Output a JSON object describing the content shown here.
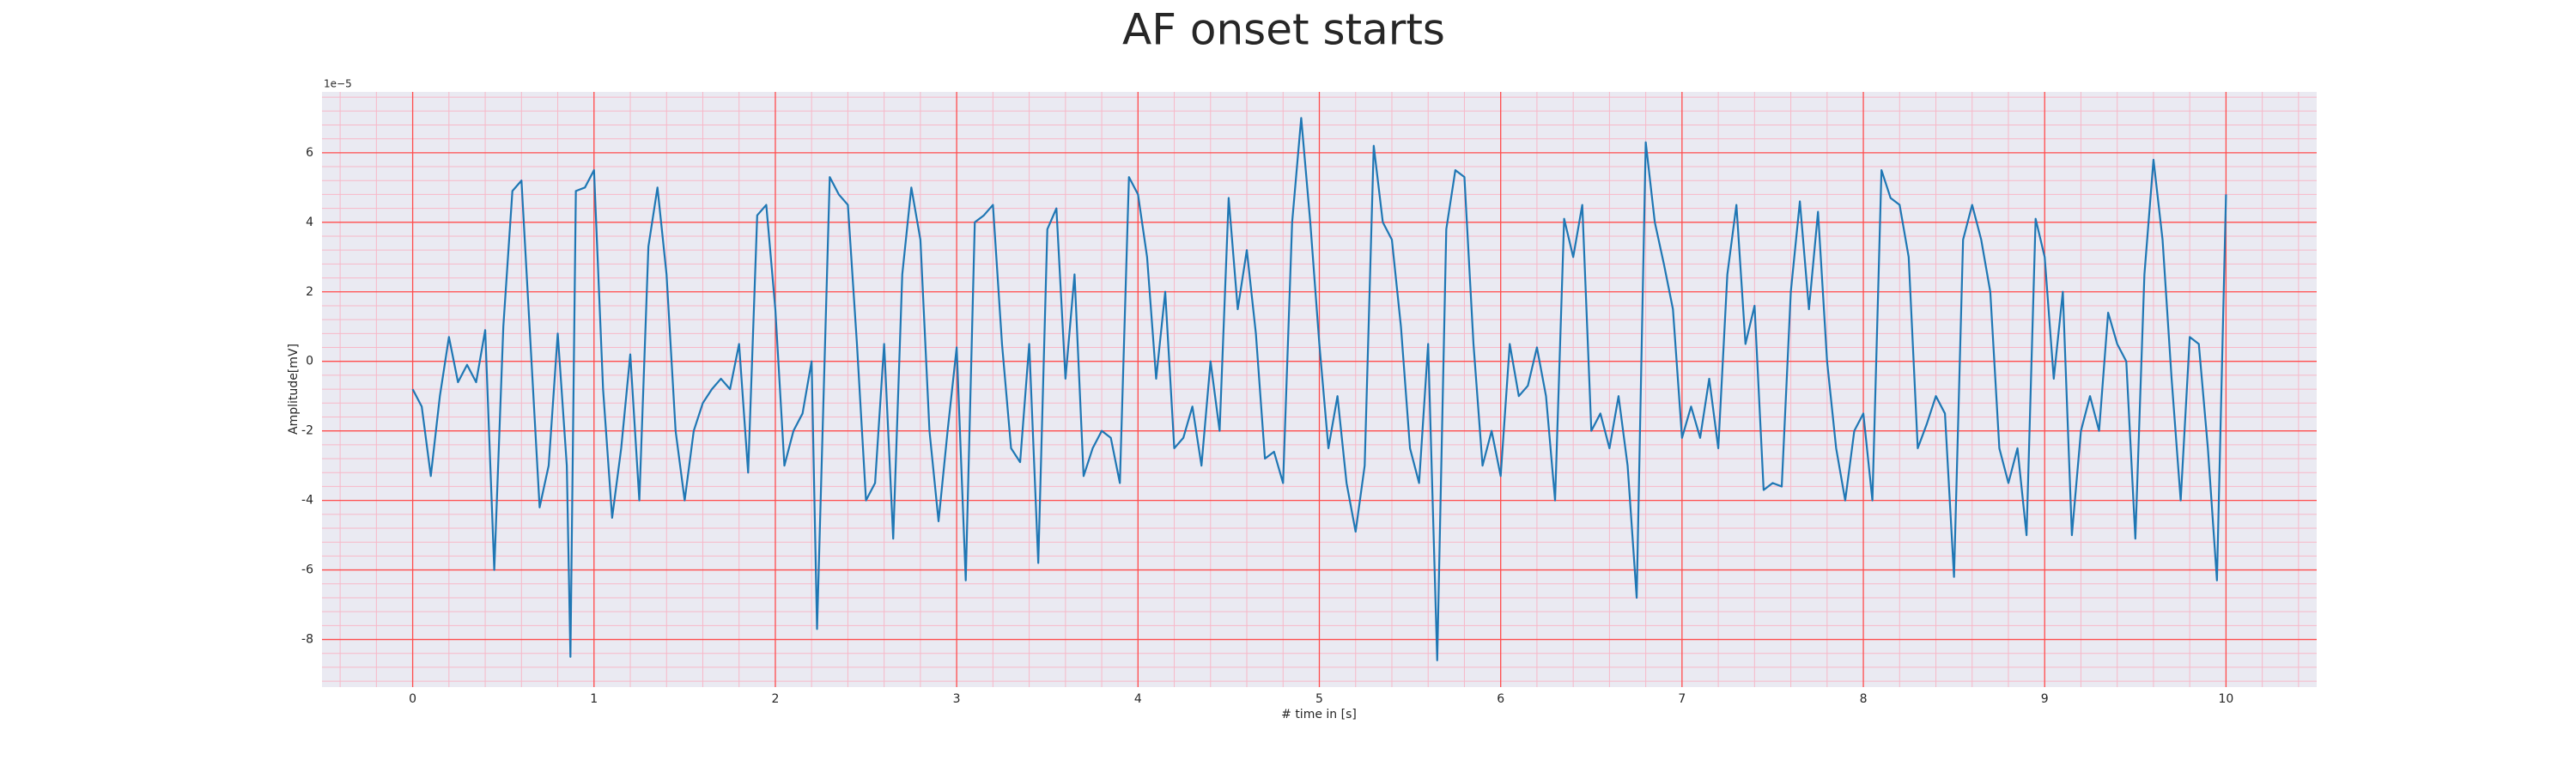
{
  "chart_data": {
    "type": "line",
    "title": "AF onset starts",
    "xlabel": "# time in [s]",
    "ylabel": "Amplitude[mV]",
    "y_offset_label": "1e−5",
    "color": "#1f77b4",
    "grid": true,
    "major_grid_color": "#ff4d4d",
    "minor_grid_color": "#f7b8c8",
    "background": "#eaeaf2",
    "xlim": [
      -0.5,
      10.5
    ],
    "xticks": [
      0,
      1,
      2,
      3,
      4,
      5,
      6,
      7,
      8,
      9,
      10
    ],
    "ylim": [
      -9.37,
      7.75
    ],
    "yticks": [
      -8,
      -6,
      -4,
      -2,
      0,
      2,
      4,
      6
    ],
    "x": [
      0,
      0.05,
      0.1,
      0.15,
      0.2,
      0.25,
      0.3,
      0.35,
      0.4,
      0.45,
      0.5,
      0.55,
      0.6,
      0.65,
      0.7,
      0.75,
      0.8,
      0.85,
      0.87,
      0.9,
      0.95,
      1,
      1.05,
      1.1,
      1.15,
      1.2,
      1.25,
      1.3,
      1.35,
      1.4,
      1.45,
      1.5,
      1.55,
      1.6,
      1.65,
      1.7,
      1.75,
      1.8,
      1.85,
      1.9,
      1.95,
      2,
      2.05,
      2.1,
      2.15,
      2.2,
      2.23,
      2.3,
      2.35,
      2.4,
      2.45,
      2.5,
      2.55,
      2.6,
      2.65,
      2.7,
      2.75,
      2.8,
      2.85,
      2.9,
      2.95,
      3,
      3.05,
      3.1,
      3.15,
      3.2,
      3.25,
      3.3,
      3.35,
      3.4,
      3.45,
      3.5,
      3.55,
      3.6,
      3.65,
      3.7,
      3.75,
      3.8,
      3.85,
      3.9,
      3.95,
      4,
      4.05,
      4.1,
      4.15,
      4.2,
      4.25,
      4.3,
      4.35,
      4.4,
      4.45,
      4.5,
      4.55,
      4.6,
      4.65,
      4.7,
      4.75,
      4.8,
      4.85,
      4.9,
      4.95,
      5,
      5.05,
      5.1,
      5.15,
      5.2,
      5.25,
      5.3,
      5.35,
      5.4,
      5.45,
      5.5,
      5.55,
      5.6,
      5.65,
      5.7,
      5.75,
      5.8,
      5.85,
      5.9,
      5.95,
      6,
      6.05,
      6.1,
      6.15,
      6.2,
      6.25,
      6.3,
      6.35,
      6.4,
      6.45,
      6.5,
      6.55,
      6.6,
      6.65,
      6.7,
      6.75,
      6.8,
      6.85,
      6.9,
      6.95,
      7,
      7.05,
      7.1,
      7.15,
      7.2,
      7.25,
      7.3,
      7.35,
      7.4,
      7.45,
      7.5,
      7.55,
      7.6,
      7.65,
      7.7,
      7.75,
      7.8,
      7.85,
      7.9,
      7.95,
      8,
      8.05,
      8.1,
      8.15,
      8.2,
      8.25,
      8.3,
      8.35,
      8.4,
      8.45,
      8.5,
      8.55,
      8.6,
      8.65,
      8.7,
      8.75,
      8.8,
      8.85,
      8.9,
      8.95,
      9,
      9.05,
      9.1,
      9.15,
      9.2,
      9.25,
      9.3,
      9.35,
      9.4,
      9.45,
      9.5,
      9.55,
      9.6,
      9.65,
      9.7,
      9.75,
      9.8,
      9.85,
      9.9,
      9.95,
      10
    ],
    "values": [
      -0.8,
      -1.3,
      -3.3,
      -1.0,
      0.7,
      -0.6,
      -0.1,
      -0.6,
      0.9,
      -6.0,
      1.0,
      4.9,
      5.2,
      0.5,
      -4.2,
      -3.0,
      0.8,
      -3.0,
      -8.5,
      4.9,
      5.0,
      5.5,
      -0.8,
      -4.5,
      -2.5,
      0.2,
      -4.0,
      3.3,
      5.0,
      2.5,
      -2.0,
      -4.0,
      -2.0,
      -1.2,
      -0.8,
      -0.5,
      -0.8,
      0.5,
      -3.2,
      4.2,
      4.5,
      1.5,
      -3.0,
      -2.0,
      -1.5,
      0.0,
      -7.7,
      5.3,
      4.8,
      4.5,
      0.5,
      -4.0,
      -3.5,
      0.5,
      -5.1,
      2.5,
      5.0,
      3.5,
      -2.0,
      -4.6,
      -2.0,
      0.4,
      -6.3,
      4.0,
      4.2,
      4.5,
      0.5,
      -2.5,
      -2.9,
      0.5,
      -5.8,
      3.8,
      4.4,
      -0.5,
      2.5,
      -3.3,
      -2.5,
      -2.0,
      -2.2,
      -3.5,
      5.3,
      4.8,
      3.0,
      -0.5,
      2.0,
      -2.5,
      -2.2,
      -1.3,
      -3.0,
      0.0,
      -2.0,
      4.7,
      1.5,
      3.2,
      0.8,
      -2.8,
      -2.6,
      -3.5,
      4.0,
      7.0,
      4.0,
      0.5,
      -2.5,
      -1.0,
      -3.5,
      -4.9,
      -3.0,
      6.2,
      4.0,
      3.5,
      1.0,
      -2.5,
      -3.5,
      0.5,
      -8.6,
      3.8,
      5.5,
      5.3,
      0.5,
      -3.0,
      -2.0,
      -3.3,
      0.5,
      -1.0,
      -0.7,
      0.4,
      -1.0,
      -4.0,
      4.1,
      3.0,
      4.5,
      -2.0,
      -1.5,
      -2.5,
      -1.0,
      -3.0,
      -6.8,
      6.3,
      4.0,
      2.8,
      1.5,
      -2.2,
      -1.3,
      -2.2,
      -0.5,
      -2.5,
      2.5,
      4.5,
      0.5,
      1.6,
      -3.7,
      -3.5,
      -3.6,
      2.0,
      4.6,
      1.5,
      4.3,
      0.0,
      -2.5,
      -4.0,
      -2.0,
      -1.5,
      -4.0,
      5.5,
      4.7,
      4.5,
      3.0,
      -2.5,
      -1.8,
      -1.0,
      -1.5,
      -6.2,
      3.5,
      4.5,
      3.5,
      2.0,
      -2.5,
      -3.5,
      -2.5,
      -5.0,
      4.1,
      3.0,
      -0.5,
      2.0,
      -5.0,
      -2.0,
      -1.0,
      -2.0,
      1.4,
      0.5,
      0.0,
      -5.1,
      2.5,
      5.8,
      3.5,
      -0.5,
      -4.0,
      0.7,
      0.5,
      -2.5,
      -6.3,
      4.8
    ]
  }
}
